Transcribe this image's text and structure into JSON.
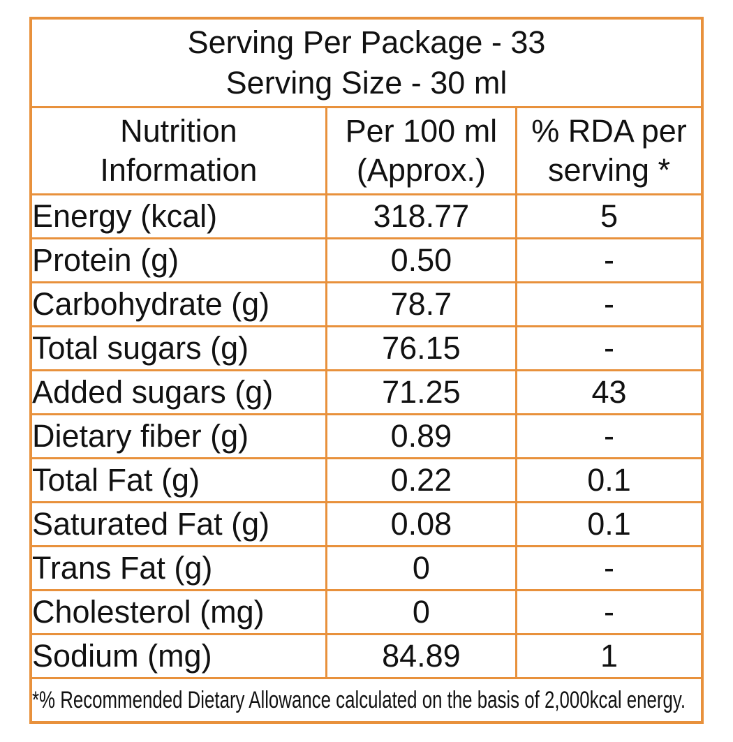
{
  "document": {
    "type": "nutrition-information-label",
    "colors": {
      "border": "#E8913C",
      "text": "#111111",
      "background": "#FFFFFF"
    },
    "serving_header": {
      "line1": "Serving Per Package - 33",
      "line2": "Serving Size - 30 ml"
    },
    "columns": [
      {
        "id": "nutrition_information",
        "line1": "Nutrition",
        "line2": "Information"
      },
      {
        "id": "per_100ml_approx",
        "line1": "Per 100 ml",
        "line2": "(Approx.)"
      },
      {
        "id": "rda_per_serving",
        "line1": "% RDA per",
        "line2": "serving *"
      }
    ],
    "rows": [
      {
        "label": "Energy (kcal)",
        "per_100ml": "318.77",
        "rda": "5"
      },
      {
        "label": "Protein (g)",
        "per_100ml": "0.50",
        "rda": "-"
      },
      {
        "label": "Carbohydrate (g)",
        "per_100ml": "78.7",
        "rda": "-"
      },
      {
        "label": "Total sugars (g)",
        "per_100ml": "76.15",
        "rda": "-"
      },
      {
        "label": "Added sugars (g)",
        "per_100ml": "71.25",
        "rda": "43"
      },
      {
        "label": "Dietary fiber (g)",
        "per_100ml": "0.89",
        "rda": "-"
      },
      {
        "label": "Total Fat (g)",
        "per_100ml": "0.22",
        "rda": "0.1"
      },
      {
        "label": "Saturated Fat (g)",
        "per_100ml": "0.08",
        "rda": "0.1"
      },
      {
        "label": "Trans Fat (g)",
        "per_100ml": "0",
        "rda": "-"
      },
      {
        "label": "Cholesterol (mg)",
        "per_100ml": "0",
        "rda": "-"
      },
      {
        "label": "Sodium (mg)",
        "per_100ml": "84.89",
        "rda": "1"
      }
    ],
    "footnote": "*% Recommended Dietary Allowance calculated on the basis of 2,000kcal energy."
  }
}
